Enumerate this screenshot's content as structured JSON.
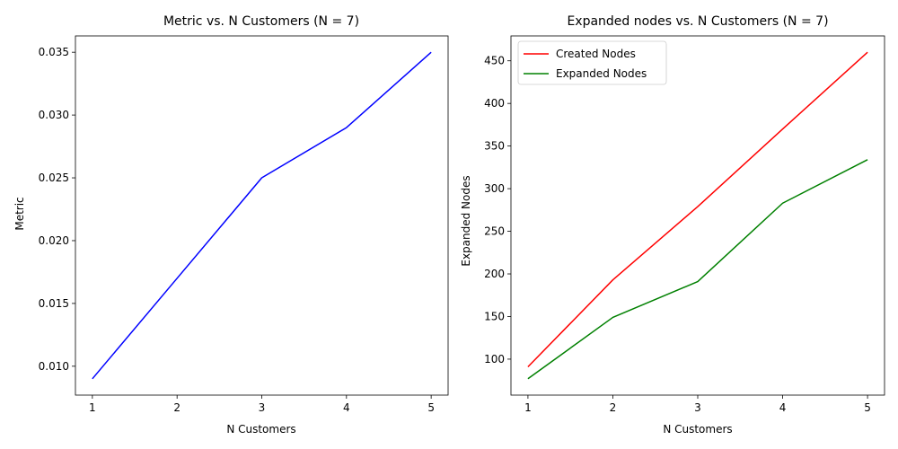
{
  "chart_data": [
    {
      "type": "line",
      "title": "Metric vs. N Customers (N = 7)",
      "xlabel": "N Customers",
      "ylabel": "Metric",
      "x": [
        1,
        2,
        3,
        4,
        5
      ],
      "xlim": [
        0.8,
        5.2
      ],
      "ylim": [
        0.0077,
        0.0363
      ],
      "xticks": [
        1,
        2,
        3,
        4,
        5
      ],
      "xtick_labels": [
        "1",
        "2",
        "3",
        "4",
        "5"
      ],
      "yticks": [
        0.01,
        0.015,
        0.02,
        0.025,
        0.03,
        0.035
      ],
      "ytick_labels": [
        "0.010",
        "0.015",
        "0.020",
        "0.025",
        "0.030",
        "0.035"
      ],
      "grid": false,
      "legend": null,
      "series": [
        {
          "values": [
            0.009,
            0.017,
            0.025,
            0.029,
            0.035
          ],
          "color": "#0000ff"
        }
      ]
    },
    {
      "type": "line",
      "title": "Expanded nodes vs. N Customers (N = 7)",
      "xlabel": "N Customers",
      "ylabel": "Expanded Nodes",
      "x": [
        1,
        2,
        3,
        4,
        5
      ],
      "xlim": [
        0.8,
        5.2
      ],
      "ylim": [
        57.8,
        479.2
      ],
      "xticks": [
        1,
        2,
        3,
        4,
        5
      ],
      "xtick_labels": [
        "1",
        "2",
        "3",
        "4",
        "5"
      ],
      "yticks": [
        100,
        150,
        200,
        250,
        300,
        350,
        400,
        450
      ],
      "ytick_labels": [
        "100",
        "150",
        "200",
        "250",
        "300",
        "350",
        "400",
        "450"
      ],
      "grid": false,
      "legend": "top-left",
      "series": [
        {
          "name": "Created Nodes",
          "values": [
            91,
            193,
            279,
            370,
            460
          ],
          "color": "#ff0000"
        },
        {
          "name": "Expanded Nodes",
          "values": [
            77,
            149,
            191,
            283,
            334
          ],
          "color": "#008000"
        }
      ]
    }
  ]
}
